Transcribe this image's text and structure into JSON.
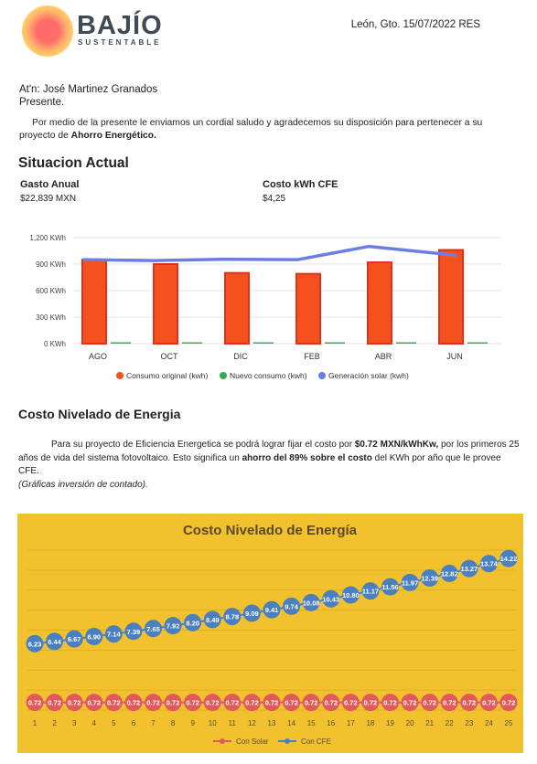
{
  "brand": {
    "name": "BAJÍO",
    "subtitle": "SUSTENTABLE"
  },
  "header": {
    "place_date": "León, Gto. 15/07/2022 RES"
  },
  "recipient": {
    "attention": "At'n: José Martinez Granados",
    "greeting": "Presente."
  },
  "intro": {
    "text": "Por medio de la presente le enviamos un cordial saludo y agradecemos su disposición para pertenecer a su proyecto de ",
    "bold": "Ahorro Energético."
  },
  "situacion": {
    "title": "Situacion Actual",
    "gasto_label": "Gasto Anual",
    "gasto_value": "$22,839 MXN",
    "costo_label": "Costo kWh CFE",
    "costo_value": "$4,25"
  },
  "costo_nivelado": {
    "title": "Costo Nivelado de Energia",
    "p1": "Para su proyecto de Eficiencia Energetica se podrá lograr fijar el costo por ",
    "b1": "$0.72 MXN/kWhKw,",
    "p2": "  por los primeros 25 años de vida del sistema fotovoltaico. Esto significa un ",
    "b2": "ahorro del 89% sobre el costo",
    "p3": " del KWh por año que le provee CFE.",
    "note": "(Gráficas inversión de contado)."
  },
  "colors": {
    "consumo": "#f4511e",
    "nuevo": "#34a853",
    "solar": "#6b7fe3",
    "panel": "#f2c12e",
    "con_solar": "#e05a5a",
    "con_cfe": "#4a7fc0"
  },
  "chart_data": [
    {
      "type": "bar",
      "categories": [
        "AGO",
        "OCT",
        "DIC",
        "FEB",
        "ABR",
        "JUN"
      ],
      "ylim": [
        0,
        1200
      ],
      "yticks": [
        "0 KWh",
        "300 KWh",
        "600 KWh",
        "900 KWh",
        "1,200 KWh"
      ],
      "grid": true,
      "legend_position": "bottom",
      "series": [
        {
          "name": "Consumo original (kwh)",
          "type": "bar",
          "values": [
            950,
            900,
            800,
            790,
            920,
            1060
          ]
        },
        {
          "name": "Nuevo consumo (kwh)",
          "type": "bar",
          "values": [
            15,
            15,
            15,
            15,
            15,
            15
          ]
        },
        {
          "name": "Generación solar (kwh)",
          "type": "line",
          "values": [
            950,
            940,
            955,
            950,
            1100,
            1000
          ]
        }
      ]
    },
    {
      "type": "line",
      "title": "Costo Nivelado de Energía",
      "x": [
        1,
        2,
        3,
        4,
        5,
        6,
        7,
        8,
        9,
        10,
        11,
        12,
        13,
        14,
        15,
        16,
        17,
        18,
        19,
        20,
        21,
        22,
        23,
        24,
        25
      ],
      "legend_position": "bottom",
      "series": [
        {
          "name": "Con Solar",
          "values": [
            0.72,
            0.72,
            0.72,
            0.72,
            0.72,
            0.72,
            0.72,
            0.72,
            0.72,
            0.72,
            0.72,
            0.72,
            0.72,
            0.72,
            0.72,
            0.72,
            0.72,
            0.72,
            0.72,
            0.72,
            0.72,
            0.72,
            0.72,
            0.72,
            0.72
          ]
        },
        {
          "name": "Con CFE",
          "values": [
            6.23,
            6.44,
            6.67,
            6.9,
            7.14,
            7.39,
            7.65,
            7.92,
            8.2,
            8.49,
            8.78,
            9.09,
            9.41,
            9.74,
            10.08,
            10.43,
            10.8,
            11.17,
            11.56,
            11.97,
            12.39,
            12.82,
            13.27,
            13.74,
            14.22
          ]
        }
      ]
    }
  ]
}
